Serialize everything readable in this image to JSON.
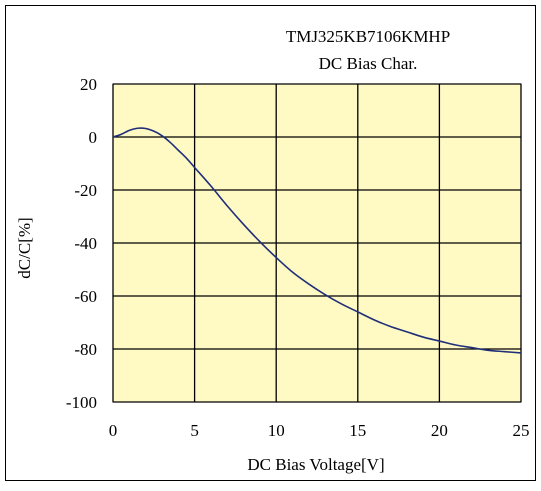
{
  "colors": {
    "plot_background": "#FFF9C4",
    "grid": "#000000",
    "curve": "#1F2F7A",
    "border": "#000000"
  },
  "chart_data": {
    "type": "line",
    "title": "TMJ325KB7106KMHP",
    "subtitle": "DC Bias Char.",
    "xlabel": "DC Bias Voltage[V]",
    "ylabel": "dC/C[%]",
    "xlim": [
      0,
      25
    ],
    "ylim": [
      -100,
      20
    ],
    "x_ticks": [
      0,
      5,
      10,
      15,
      20,
      25
    ],
    "y_ticks": [
      20,
      0,
      -20,
      -40,
      -60,
      -80,
      -100
    ],
    "grid": true,
    "series": [
      {
        "x": [
          0,
          0.5,
          1,
          1.5,
          2,
          2.5,
          3,
          3.5,
          4,
          4.5,
          5,
          6,
          7,
          8,
          9,
          10,
          11,
          12,
          13,
          14,
          15,
          16,
          17,
          18,
          19,
          20,
          21,
          22,
          23,
          24,
          25
        ],
        "y": [
          0,
          1,
          2.5,
          3.3,
          3.2,
          2.2,
          0.5,
          -2,
          -5,
          -8,
          -11.5,
          -18.5,
          -26,
          -33,
          -39.5,
          -45.5,
          -51,
          -55.5,
          -59.5,
          -63,
          -66,
          -69,
          -71.5,
          -73.5,
          -75.5,
          -77,
          -78.5,
          -79.5,
          -80.5,
          -81,
          -81.5
        ]
      }
    ]
  }
}
